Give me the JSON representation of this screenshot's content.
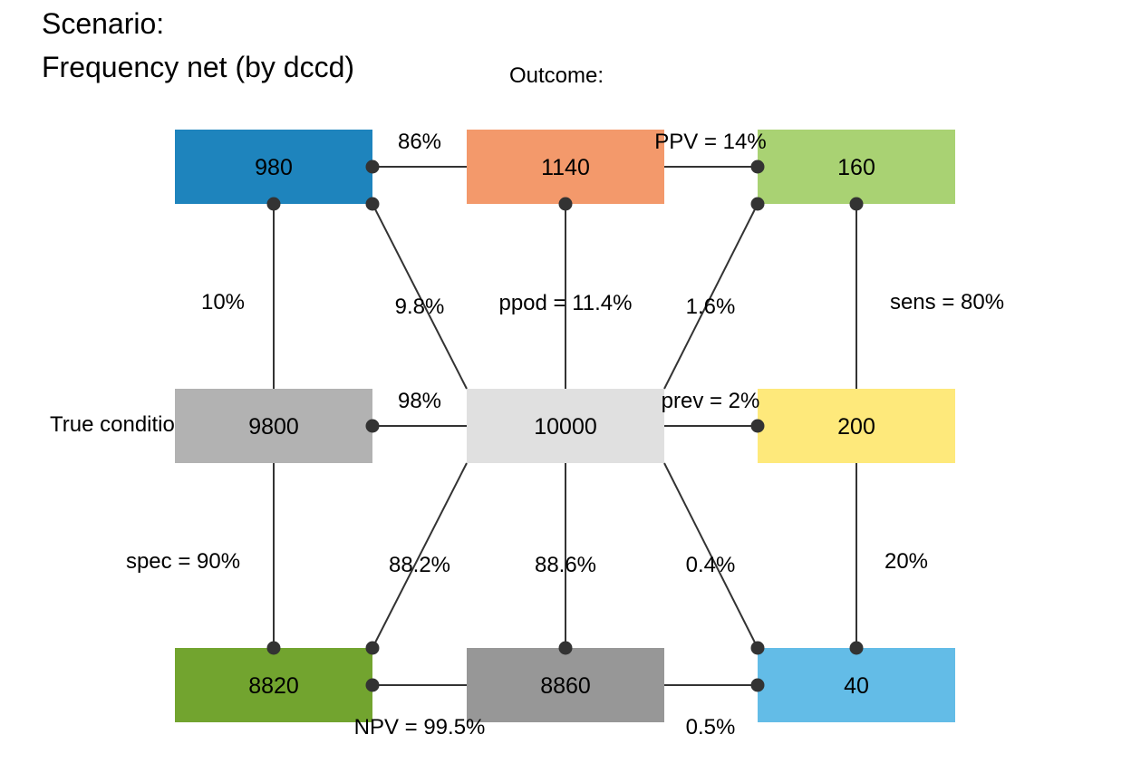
{
  "title": {
    "line1": "Scenario:",
    "line2": "Frequency net (by dccd)"
  },
  "labels": {
    "outcome": "Outcome:",
    "condition": "True condition:"
  },
  "nodes": [
    {
      "id": "hi",
      "value": "980",
      "color": "#1e84bd"
    },
    {
      "id": "dec_pos",
      "value": "1140",
      "color": "#f3996b"
    },
    {
      "id": "tp",
      "value": "160",
      "color": "#a9d273"
    },
    {
      "id": "cond_false",
      "value": "9800",
      "color": "#b2b2b2"
    },
    {
      "id": "N",
      "value": "10000",
      "color": "#e0e0e0"
    },
    {
      "id": "cond_true",
      "value": "200",
      "color": "#fee97b"
    },
    {
      "id": "tn",
      "value": "8820",
      "color": "#72a42f"
    },
    {
      "id": "dec_neg",
      "value": "8860",
      "color": "#979797"
    },
    {
      "id": "fn",
      "value": "40",
      "color": "#63bce7"
    }
  ],
  "edge_labels": [
    {
      "id": "l-top-left",
      "text": "86%"
    },
    {
      "id": "l-top-right",
      "text": "PPV = 14%"
    },
    {
      "id": "l-left-upper",
      "text": "10%"
    },
    {
      "id": "l-diag-upper-left",
      "text": "9.8%"
    },
    {
      "id": "l-center-upper",
      "text": "ppod = 11.4%"
    },
    {
      "id": "l-diag-upper-right",
      "text": "1.6%"
    },
    {
      "id": "l-right-upper",
      "text": "sens = 80%"
    },
    {
      "id": "l-mid-left",
      "text": "98%"
    },
    {
      "id": "l-mid-right",
      "text": "prev = 2%"
    },
    {
      "id": "l-left-lower",
      "text": "spec = 90%"
    },
    {
      "id": "l-diag-lower-left",
      "text": "88.2%"
    },
    {
      "id": "l-center-lower",
      "text": "88.6%"
    },
    {
      "id": "l-diag-lower-right",
      "text": "0.4%"
    },
    {
      "id": "l-right-lower",
      "text": "20%"
    },
    {
      "id": "l-bottom-left",
      "text": "NPV = 99.5%"
    },
    {
      "id": "l-bottom-right",
      "text": "0.5%"
    }
  ]
}
